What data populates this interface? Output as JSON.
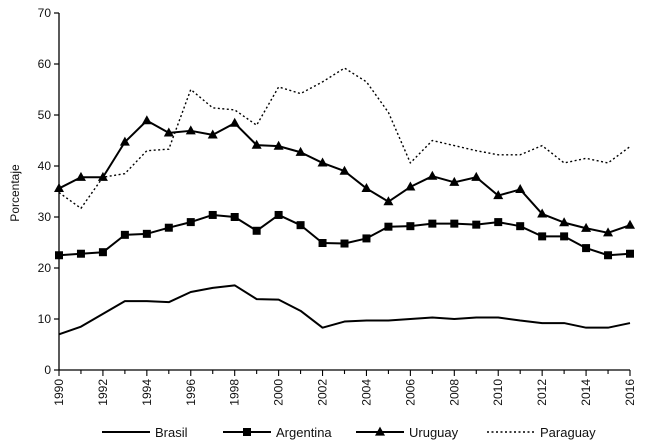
{
  "chart_data": {
    "type": "line",
    "title": "",
    "xlabel": "",
    "ylabel": "Porcentaje",
    "ylim": [
      0,
      70
    ],
    "yticks": [
      0,
      10,
      20,
      30,
      40,
      50,
      60,
      70
    ],
    "xlim": [
      1990,
      2016
    ],
    "xticks": [
      1990,
      1992,
      1994,
      1996,
      1998,
      2000,
      2002,
      2004,
      2006,
      2008,
      2010,
      2012,
      2014,
      2016
    ],
    "grid": false,
    "legend_position": "bottom",
    "x": [
      1990,
      1991,
      1992,
      1993,
      1994,
      1995,
      1996,
      1997,
      1998,
      1999,
      2000,
      2001,
      2002,
      2003,
      2004,
      2005,
      2006,
      2007,
      2008,
      2009,
      2010,
      2011,
      2012,
      2013,
      2014,
      2015,
      2016
    ],
    "series": [
      {
        "name": "Brasil",
        "style": "solid",
        "marker": "none",
        "color": "#000000",
        "values": [
          7.0,
          8.5,
          11.0,
          13.5,
          13.5,
          13.3,
          15.3,
          16.1,
          16.6,
          13.9,
          13.8,
          11.6,
          8.3,
          9.5,
          9.7,
          9.7,
          10.0,
          10.3,
          10.0,
          10.3,
          10.3,
          9.7,
          9.2,
          9.2,
          8.3,
          8.3,
          9.2
        ]
      },
      {
        "name": "Argentina",
        "style": "solid",
        "marker": "square",
        "color": "#000000",
        "values": [
          22.5,
          22.8,
          23.1,
          26.5,
          26.7,
          27.9,
          29.0,
          30.4,
          30.0,
          27.3,
          30.4,
          28.4,
          24.9,
          24.8,
          25.8,
          28.1,
          28.2,
          28.7,
          28.7,
          28.5,
          29.0,
          28.2,
          26.2,
          26.2,
          23.9,
          22.5,
          22.8
        ]
      },
      {
        "name": "Uruguay",
        "style": "solid",
        "marker": "triangle",
        "color": "#000000",
        "values": [
          35.6,
          37.8,
          37.8,
          44.7,
          48.9,
          46.5,
          46.9,
          46.1,
          48.4,
          44.1,
          43.9,
          42.7,
          40.6,
          39.0,
          35.6,
          33.0,
          35.9,
          38.0,
          36.8,
          37.8,
          34.2,
          35.4,
          30.6,
          28.9,
          27.8,
          26.9,
          28.4
        ]
      },
      {
        "name": "Paraguay",
        "style": "dotted",
        "marker": "none",
        "color": "#000000",
        "values": [
          34.8,
          31.7,
          37.8,
          38.5,
          43.0,
          43.3,
          55.0,
          51.4,
          51.0,
          48.0,
          55.5,
          54.2,
          56.5,
          59.2,
          56.5,
          50.5,
          40.6,
          45.0,
          44.0,
          43.0,
          42.2,
          42.2,
          44.0,
          40.6,
          41.5,
          40.6,
          43.8
        ]
      }
    ]
  }
}
